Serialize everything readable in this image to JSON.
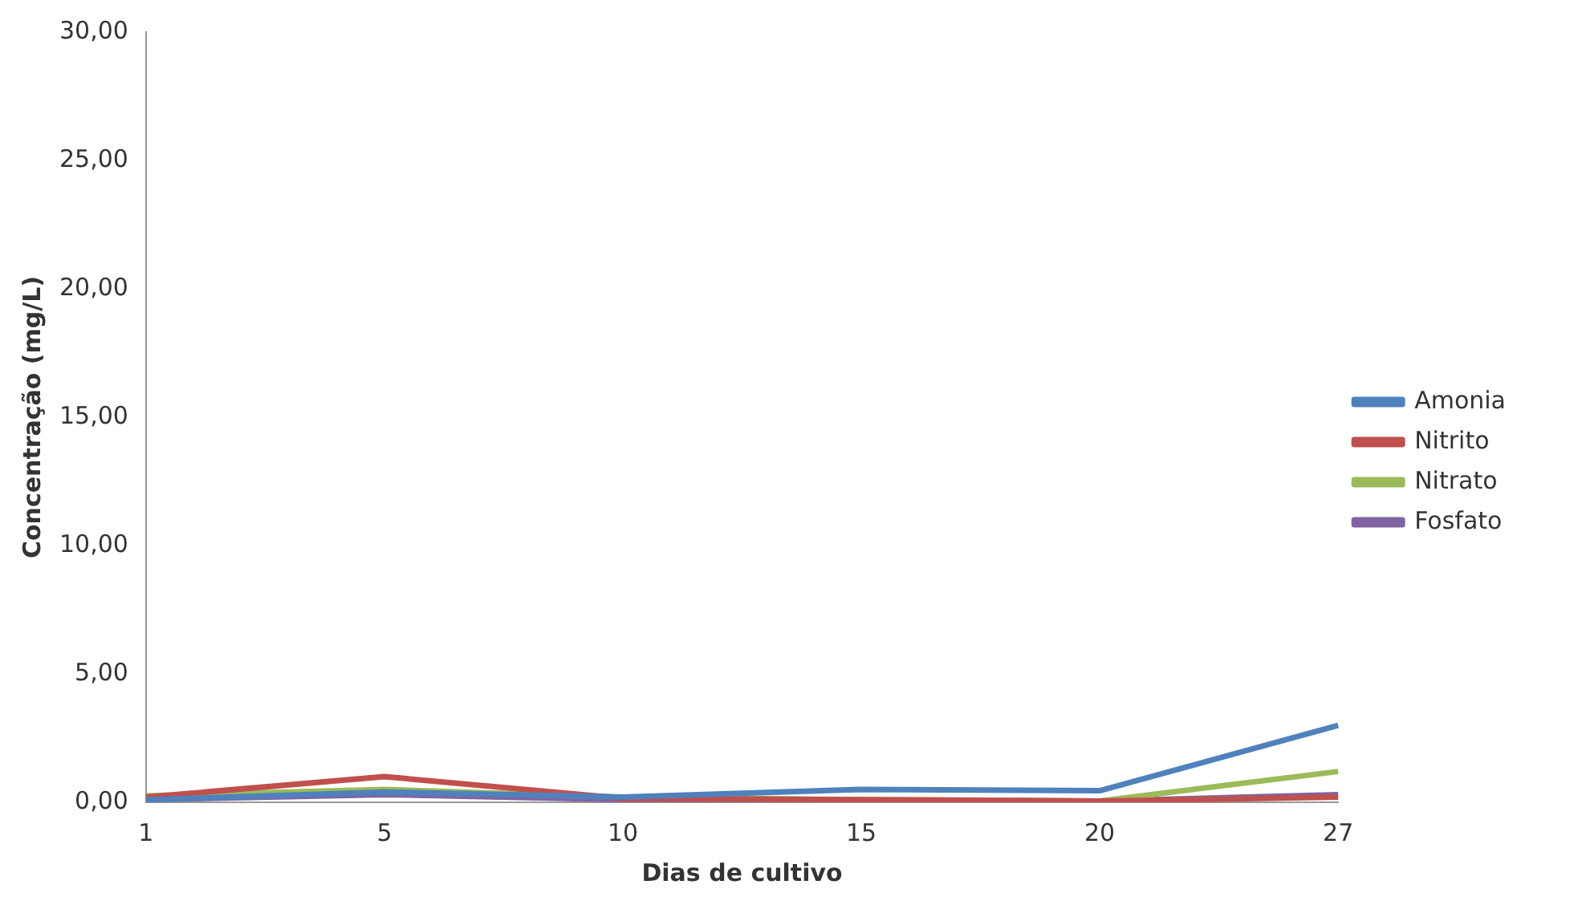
{
  "chart_data": {
    "type": "line",
    "xlabel": "Dias de cultivo",
    "ylabel": "Concentração (mg/L)",
    "categories": [
      "1",
      "5",
      "10",
      "15",
      "20",
      "27"
    ],
    "series": [
      {
        "name": "Amonia",
        "color": "#4f81bd",
        "values": [
          0.1,
          0.4,
          0.2,
          0.5,
          0.45,
          3.0
        ]
      },
      {
        "name": "Nitrito",
        "color": "#c0504d",
        "values": [
          0.2,
          1.0,
          0.15,
          0.1,
          0.05,
          0.2
        ]
      },
      {
        "name": "Nitrato",
        "color": "#9bbb59",
        "values": [
          0.25,
          0.5,
          0.2,
          0.1,
          0.05,
          1.2
        ]
      },
      {
        "name": "Fosfato",
        "color": "#8064a2",
        "values": [
          0.1,
          0.3,
          0.1,
          0.05,
          0.05,
          0.3
        ]
      }
    ],
    "ylim": [
      0,
      30
    ],
    "yticks": [
      {
        "value": 0,
        "label": "0,00"
      },
      {
        "value": 5,
        "label": "5,00"
      },
      {
        "value": 10,
        "label": "10,00"
      },
      {
        "value": 15,
        "label": "15,00"
      },
      {
        "value": 20,
        "label": "20,00"
      },
      {
        "value": 25,
        "label": "25,00"
      },
      {
        "value": 30,
        "label": "30,00"
      }
    ],
    "grid": false,
    "legend": "right",
    "marker": "none",
    "line_style": "solid"
  }
}
